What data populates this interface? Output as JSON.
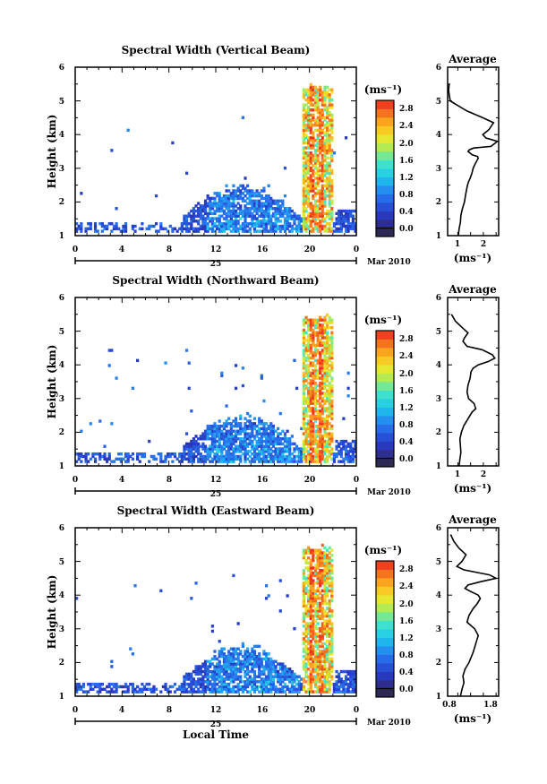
{
  "chart_data": [
    {
      "type": "heatmap",
      "title": "Spectral Width (Vertical Beam)",
      "ylabel": "Height (km)",
      "xlabel": "",
      "x_ticks": [
        "0",
        "4",
        "8",
        "12",
        "16",
        "20",
        "0"
      ],
      "y_ticks": [
        "1",
        "2",
        "3",
        "4",
        "5",
        "6"
      ],
      "xlim": [
        0,
        24
      ],
      "ylim": [
        1,
        6
      ],
      "date_label": "25",
      "month_label": "Mar 2010",
      "colorbar": {
        "label": "(ms⁻¹)",
        "ticks": [
          "0.0",
          "0.4",
          "0.8",
          "1.2",
          "1.6",
          "2.0",
          "2.4",
          "2.8"
        ],
        "range": [
          0,
          3.0
        ]
      },
      "profile": {
        "title": "Average",
        "xlabel": "(ms⁻¹)",
        "x_ticks": [
          "1",
          "2"
        ],
        "y_ticks": [
          "1",
          "2",
          "3",
          "4",
          "5",
          "6"
        ],
        "xlim": [
          0.6,
          2.6
        ],
        "x": [
          1.02,
          1.05,
          1.1,
          1.12,
          1.18,
          1.26,
          1.3,
          1.35,
          1.38,
          1.42,
          1.48,
          1.53,
          1.57,
          1.6,
          1.66,
          1.73,
          1.8,
          1.77,
          1.56,
          1.4,
          1.46,
          1.62,
          2.3,
          2.55,
          2.1,
          1.98,
          2.22,
          2.4,
          1.98,
          1.36,
          0.92,
          0.7,
          0.64,
          0.66
        ],
        "y": [
          1.0,
          1.2,
          1.4,
          1.6,
          1.8,
          2.0,
          2.2,
          2.4,
          2.5,
          2.6,
          2.7,
          2.8,
          2.9,
          3.0,
          3.1,
          3.2,
          3.3,
          3.35,
          3.4,
          3.5,
          3.55,
          3.6,
          3.65,
          3.8,
          3.9,
          4.0,
          4.15,
          4.35,
          4.5,
          4.7,
          4.9,
          5.0,
          5.3,
          5.5
        ]
      }
    },
    {
      "type": "heatmap",
      "title": "Spectral Width (Northward Beam)",
      "ylabel": "Height (km)",
      "xlabel": "",
      "x_ticks": [
        "0",
        "4",
        "8",
        "12",
        "16",
        "20",
        "0"
      ],
      "y_ticks": [
        "1",
        "2",
        "3",
        "4",
        "5",
        "6"
      ],
      "xlim": [
        0,
        24
      ],
      "ylim": [
        1,
        6
      ],
      "date_label": "25",
      "month_label": "Mar 2010",
      "colorbar": {
        "label": "(ms⁻¹)",
        "ticks": [
          "0.0",
          "0.4",
          "0.8",
          "1.2",
          "1.6",
          "2.0",
          "2.4",
          "2.8"
        ],
        "range": [
          0,
          3.0
        ]
      },
      "profile": {
        "title": "Average",
        "xlabel": "(ms⁻¹)",
        "x_ticks": [
          "1",
          "2"
        ],
        "y_ticks": [
          "1",
          "2",
          "3",
          "4",
          "5",
          "6"
        ],
        "xlim": [
          0.6,
          2.6
        ],
        "x": [
          1.05,
          1.08,
          1.12,
          1.1,
          1.08,
          1.14,
          1.24,
          1.36,
          1.48,
          1.56,
          1.7,
          1.64,
          1.42,
          1.36,
          1.4,
          1.48,
          1.52,
          1.6,
          1.8,
          2.2,
          2.45,
          2.35,
          1.95,
          1.36,
          1.2,
          1.26,
          1.4,
          1.18,
          0.9,
          0.75
        ],
        "y": [
          1.0,
          1.2,
          1.4,
          1.6,
          1.8,
          2.0,
          2.2,
          2.35,
          2.5,
          2.6,
          2.7,
          2.85,
          3.0,
          3.2,
          3.4,
          3.6,
          3.8,
          3.9,
          4.0,
          4.1,
          4.2,
          4.3,
          4.45,
          4.55,
          4.7,
          4.8,
          4.95,
          5.1,
          5.3,
          5.5
        ]
      }
    },
    {
      "type": "heatmap",
      "title": "Spectral Width (Eastward Beam)",
      "ylabel": "Height (km)",
      "xlabel": "Local Time",
      "x_ticks": [
        "0",
        "4",
        "8",
        "12",
        "16",
        "20",
        "0"
      ],
      "y_ticks": [
        "1",
        "2",
        "3",
        "4",
        "5",
        "6"
      ],
      "xlim": [
        0,
        24
      ],
      "ylim": [
        1,
        6
      ],
      "date_label": "25",
      "month_label": "Mar 2010",
      "colorbar": {
        "label": "(ms⁻¹)",
        "ticks": [
          "0.0",
          "0.4",
          "0.8",
          "1.2",
          "1.6",
          "2.0",
          "2.4",
          "2.8"
        ],
        "range": [
          0,
          3.0
        ]
      },
      "profile": {
        "title": "Average",
        "xlabel": "(ms⁻¹)",
        "x_ticks": [
          "0.8",
          "1.8"
        ],
        "y_ticks": [
          "1",
          "2",
          "3",
          "4",
          "5",
          "6"
        ],
        "xlim": [
          0.8,
          1.8
        ],
        "x": [
          1.05,
          1.08,
          1.12,
          1.1,
          1.14,
          1.22,
          1.3,
          1.36,
          1.4,
          1.33,
          1.18,
          1.22,
          1.3,
          1.38,
          1.44,
          1.4,
          1.26,
          1.14,
          1.2,
          1.45,
          1.75,
          1.62,
          1.12,
          0.98,
          1.08,
          1.16,
          1.02,
          0.92,
          0.86
        ],
        "y": [
          1.0,
          1.2,
          1.4,
          1.6,
          1.8,
          2.0,
          2.3,
          2.6,
          2.8,
          3.0,
          3.2,
          3.4,
          3.6,
          3.75,
          3.9,
          4.0,
          4.1,
          4.2,
          4.3,
          4.4,
          4.5,
          4.6,
          4.75,
          4.85,
          5.0,
          5.2,
          5.4,
          5.6,
          5.8
        ]
      }
    }
  ]
}
